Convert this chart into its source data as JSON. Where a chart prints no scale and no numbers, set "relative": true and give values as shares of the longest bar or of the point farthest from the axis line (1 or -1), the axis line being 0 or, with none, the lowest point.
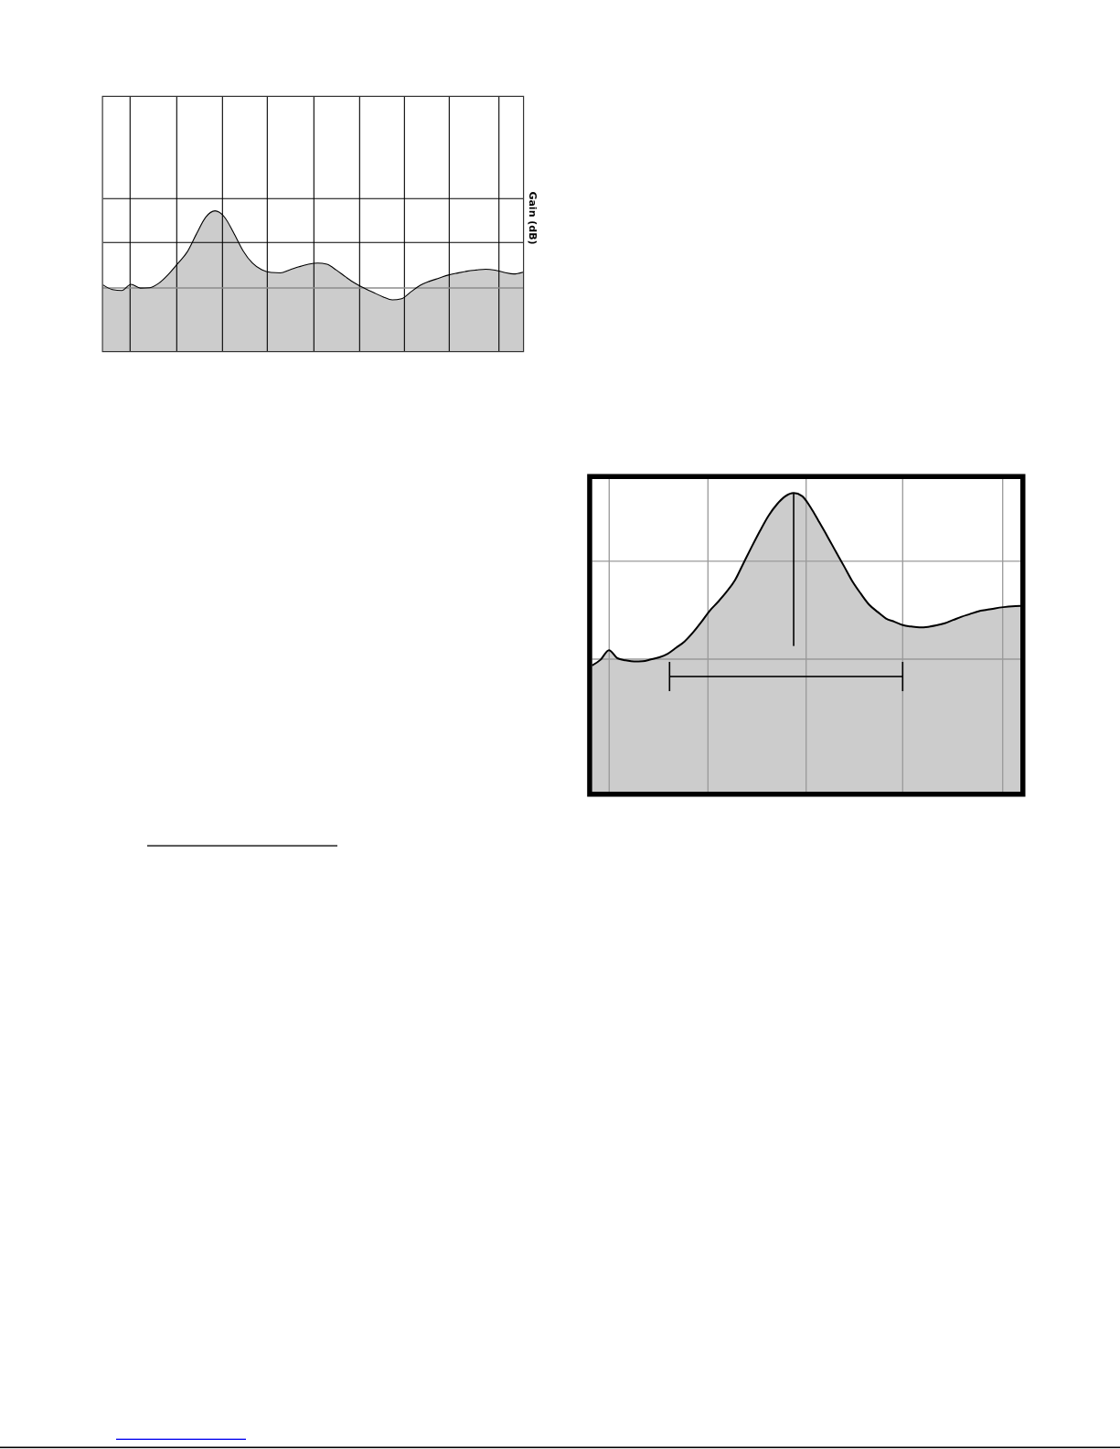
{
  "chart_data": [
    {
      "type": "area",
      "relative": true,
      "ylabel": "Gain (dB)",
      "grid": true,
      "color": "#cccccc",
      "ref_lines": [
        {
          "axis": "y",
          "value": 0.45,
          "color": "#8c8c8c"
        }
      ],
      "categories": [
        null,
        null,
        null,
        null,
        null,
        null,
        null,
        null,
        null,
        null,
        null,
        null,
        null,
        null,
        null,
        null,
        null,
        null,
        null,
        null,
        null,
        null,
        null,
        null,
        null,
        null,
        null,
        null,
        null,
        null,
        null,
        null,
        null,
        null,
        null,
        null,
        null,
        null,
        null,
        null,
        null,
        null,
        null,
        null,
        null,
        null
      ],
      "values": [
        0.472,
        0.439,
        0.432,
        0.476,
        0.449,
        0.452,
        0.485,
        0.547,
        0.624,
        0.705,
        0.834,
        0.955,
        1,
        0.957,
        0.843,
        0.716,
        0.628,
        0.58,
        0.561,
        0.558,
        0.579,
        0.601,
        0.619,
        0.628,
        0.619,
        0.578,
        0.529,
        0.484,
        0.449,
        0.417,
        0.387,
        0.365,
        0.373,
        0.423,
        0.47,
        0.498,
        0.52,
        0.542,
        0.557,
        0.57,
        0.578,
        0.584,
        0.577,
        0.561,
        0.55,
        0.563
      ]
    },
    {
      "type": "area",
      "relative": true,
      "grid": true,
      "color": "#cccccc",
      "categories": [
        null,
        null,
        null,
        null,
        null,
        null,
        null,
        null,
        null,
        null,
        null,
        null,
        null,
        null,
        null,
        null,
        null,
        null,
        null,
        null,
        null,
        null,
        null,
        null,
        null,
        null,
        null,
        null,
        null,
        null,
        null,
        null,
        null,
        null,
        null,
        null,
        null,
        null,
        null,
        null,
        null,
        null,
        null,
        null,
        null,
        null,
        null,
        null,
        null,
        null,
        null,
        null
      ],
      "values": [
        0.423,
        0.442,
        0.474,
        0.447,
        0.44,
        0.436,
        0.437,
        0.443,
        0.45,
        0.462,
        0.482,
        0.503,
        0.533,
        0.568,
        0.606,
        0.636,
        0.669,
        0.708,
        0.764,
        0.82,
        0.874,
        0.924,
        0.962,
        0.989,
        1,
        0.99,
        0.953,
        0.905,
        0.856,
        0.805,
        0.755,
        0.704,
        0.663,
        0.626,
        0.602,
        0.58,
        0.569,
        0.558,
        0.553,
        0.55,
        0.552,
        0.557,
        0.564,
        0.575,
        0.586,
        0.595,
        0.604,
        0.609,
        0.614,
        0.618,
        0.621,
        0.622
      ]
    }
  ]
}
